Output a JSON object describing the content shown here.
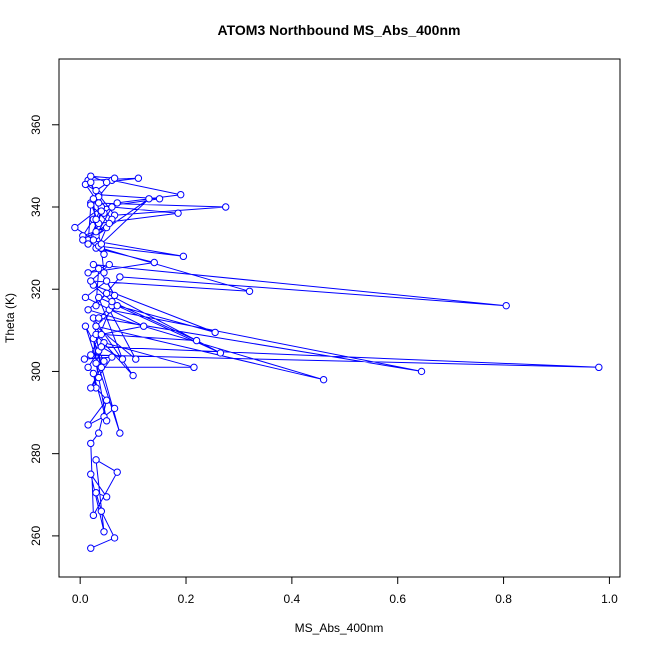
{
  "chart_data": {
    "type": "scatter",
    "connected": true,
    "title": "ATOM3 Northbound MS_Abs_400nm",
    "xlabel": "MS_Abs_400nm",
    "ylabel": "Theta (K)",
    "xlim": [
      -0.04,
      1.02
    ],
    "ylim": [
      250,
      376
    ],
    "xticks": [
      0,
      0.2,
      0.4,
      0.6,
      0.8,
      1
    ],
    "xtick_labels": [
      "0.0",
      "0.2",
      "0.4",
      "0.6",
      "0.8",
      "1.0"
    ],
    "yticks": [
      260,
      280,
      300,
      320,
      340,
      360
    ],
    "ytick_labels": [
      "260",
      "280",
      "300",
      "320",
      "340",
      "360"
    ],
    "color": "#0000ff",
    "series": [
      {
        "x": [
          0.02,
          0.065,
          0.04,
          0.03,
          0.05,
          0.02,
          0.045,
          0.03,
          0.07,
          0.025,
          0.02,
          0.035,
          0.05,
          0.015,
          0.045,
          0.065,
          0.03,
          0.025,
          0.05,
          0.03,
          0.04,
          0.015,
          0.035,
          0.025,
          0.075,
          0.01,
          0.045,
          0.02,
          0.06,
          0.008,
          0.035,
          0.03,
          0.1,
          0.025,
          0.04,
          0.215,
          0.045,
          0.03,
          0.105,
          0.055,
          0.645,
          0.035,
          0.06,
          0.02,
          0.98,
          0.04,
          0.08,
          0.035,
          0.265,
          0.05,
          0.015,
          0.46,
          0.03,
          0.07,
          0.255,
          0.025,
          0.06,
          0.22,
          0.04,
          0.12,
          0.01,
          0.05,
          0.065,
          0.035,
          0.03,
          0.075,
          0.805,
          0.025,
          0.045,
          0.04,
          0.32,
          0.02,
          0.055,
          0.015,
          0.14,
          0.03,
          0.045,
          0.015,
          0.195,
          0.035,
          0.05,
          0.005,
          0.025,
          0.04,
          0.13,
          0.03,
          0.06,
          0.185,
          0.035,
          0.02,
          0.275,
          0.065,
          0.035,
          0.15,
          0.04,
          0.03,
          0.07,
          0.19,
          0.06,
          0.035,
          0.015,
          0.11,
          0.05,
          0.02,
          0.065,
          0.03,
          0.01,
          0.04,
          -0.01,
          0.025,
          0.06,
          0.035,
          0.02,
          0.045,
          0.025,
          0.03,
          0.04,
          0.015,
          0.02,
          0.055,
          0.005
        ],
        "y": [
          257,
          259.5,
          266,
          270.5,
          269.5,
          275,
          261,
          278.5,
          275.5,
          265,
          282.5,
          285,
          293,
          287,
          289,
          291,
          296,
          299.5,
          288,
          302,
          306,
          301,
          298.5,
          308,
          285,
          311,
          302.5,
          296,
          303.5,
          303,
          305,
          309,
          299,
          313,
          301,
          301,
          307,
          311,
          303,
          315,
          300,
          313,
          316,
          304,
          301,
          306,
          303,
          318,
          304.5,
          319,
          315,
          298,
          311,
          316,
          309.5,
          321,
          317,
          307.5,
          309,
          311,
          318,
          322,
          318.5,
          325,
          316,
          323,
          316,
          326,
          324,
          330,
          319.5,
          322,
          326,
          324,
          326.5,
          330,
          328.5,
          332,
          328,
          330.5,
          335,
          333,
          337,
          331,
          342,
          333,
          340,
          338.5,
          336,
          341,
          340,
          338,
          343,
          342,
          340,
          337,
          341,
          343,
          346.5,
          342.5,
          346.5,
          347,
          346,
          347.5,
          347,
          344,
          345.5,
          340,
          335,
          332,
          337,
          341,
          346,
          338.5,
          342,
          334,
          339,
          331,
          340.5,
          336,
          332
        ]
      }
    ]
  }
}
